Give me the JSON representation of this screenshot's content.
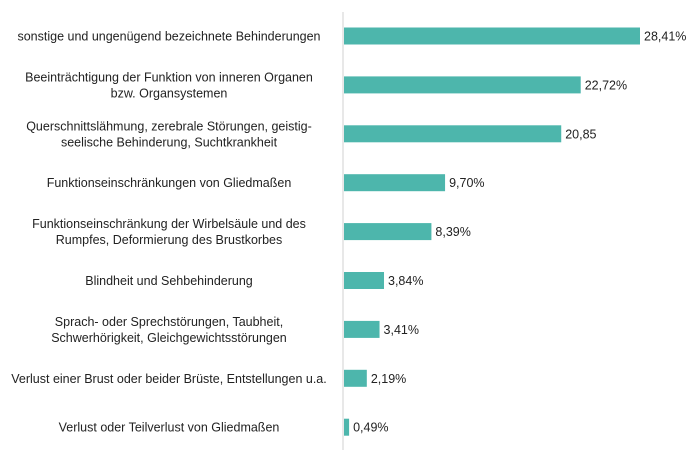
{
  "chart_data": {
    "type": "bar",
    "orientation": "horizontal",
    "categories": [
      [
        "sonstige und ungenügend bezeichnete Behinderungen"
      ],
      [
        "Beeinträchtigung der Funktion von inneren Organen",
        "bzw. Organsystemen"
      ],
      [
        "Querschnittslähmung, zerebrale Störungen, geistig-",
        "seelische Behinderung, Suchtkrankheit"
      ],
      [
        "Funktionseinschränkungen von Gliedmaßen"
      ],
      [
        "Funktionseinschränkung der Wirbelsäule und des",
        "Rumpfes, Deformierung des Brustkorbes"
      ],
      [
        "Blindheit und Sehbehinderung"
      ],
      [
        "Sprach- oder Sprechstörungen, Taubheit,",
        "Schwerhörigkeit, Gleichgewichtsstörungen"
      ],
      [
        "Verlust einer Brust oder beider Brüste, Entstellungen u.a."
      ],
      [
        "Verlust oder Teilverlust von Gliedmaßen"
      ]
    ],
    "values": [
      28.41,
      22.72,
      20.85,
      9.7,
      8.39,
      3.84,
      3.41,
      2.19,
      0.49
    ],
    "value_labels": [
      "28,41%",
      "22,72%",
      "20,85",
      "9,70%",
      "8,39%",
      "3,84%",
      "3,41%",
      "2,19%",
      "0,49%"
    ],
    "xlim": [
      0,
      28.41
    ],
    "bar_color": "#4db6ac",
    "axis_color": "#d0d0d0",
    "grid": false,
    "legend": "none"
  }
}
